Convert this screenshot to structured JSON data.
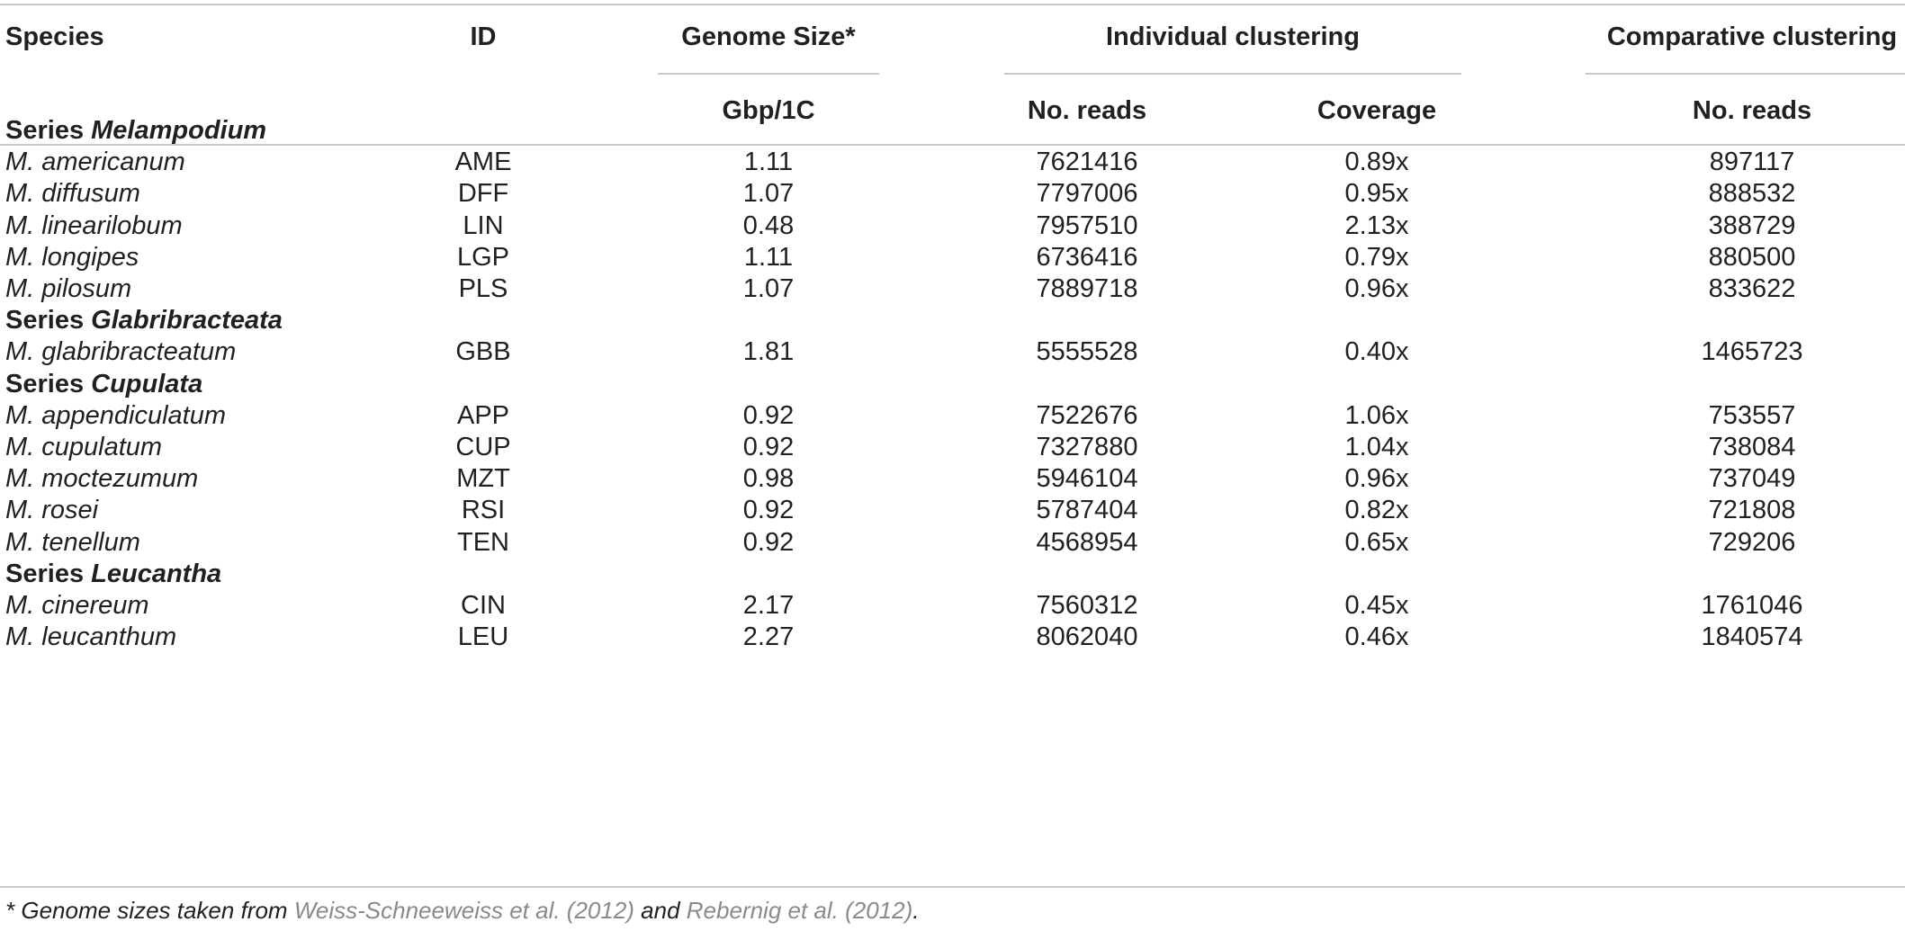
{
  "table": {
    "headers": {
      "species": "Species",
      "id": "ID",
      "genome_size": "Genome Size*",
      "individual": "Individual clustering",
      "comparative": "Comparative clustering",
      "gbp": "Gbp/1C",
      "reads": "No. reads",
      "coverage": "Coverage",
      "comp_reads": "No. reads"
    },
    "groups": [
      {
        "prefix": "Series ",
        "name": "Melampodium",
        "rows": [
          {
            "species": "M. americanum",
            "id": "AME",
            "gbp": "1.11",
            "reads": "7621416",
            "coverage": "0.89x",
            "comp_reads": "897117"
          },
          {
            "species": "M. diffusum",
            "id": "DFF",
            "gbp": "1.07",
            "reads": "7797006",
            "coverage": "0.95x",
            "comp_reads": "888532"
          },
          {
            "species": "M. linearilobum",
            "id": "LIN",
            "gbp": "0.48",
            "reads": "7957510",
            "coverage": "2.13x",
            "comp_reads": "388729"
          },
          {
            "species": "M. longipes",
            "id": "LGP",
            "gbp": "1.11",
            "reads": "6736416",
            "coverage": "0.79x",
            "comp_reads": "880500"
          },
          {
            "species": "M. pilosum",
            "id": "PLS",
            "gbp": "1.07",
            "reads": "7889718",
            "coverage": "0.96x",
            "comp_reads": "833622"
          }
        ]
      },
      {
        "prefix": "Series ",
        "name": "Glabribracteata",
        "rows": [
          {
            "species": "M. glabribracteatum",
            "id": "GBB",
            "gbp": "1.81",
            "reads": "5555528",
            "coverage": "0.40x",
            "comp_reads": "1465723"
          }
        ]
      },
      {
        "prefix": "Series ",
        "name": "Cupulata",
        "rows": [
          {
            "species": "M. appendiculatum",
            "id": "APP",
            "gbp": "0.92",
            "reads": "7522676",
            "coverage": "1.06x",
            "comp_reads": "753557"
          },
          {
            "species": "M. cupulatum",
            "id": "CUP",
            "gbp": "0.92",
            "reads": "7327880",
            "coverage": "1.04x",
            "comp_reads": "738084"
          },
          {
            "species": "M. moctezumum",
            "id": "MZT",
            "gbp": "0.98",
            "reads": "5946104",
            "coverage": "0.96x",
            "comp_reads": "737049"
          },
          {
            "species": "M. rosei",
            "id": "RSI",
            "gbp": "0.92",
            "reads": "5787404",
            "coverage": "0.82x",
            "comp_reads": "721808"
          },
          {
            "species": "M. tenellum",
            "id": "TEN",
            "gbp": "0.92",
            "reads": "4568954",
            "coverage": "0.65x",
            "comp_reads": "729206"
          }
        ]
      },
      {
        "prefix": "Series ",
        "name": "Leucantha",
        "rows": [
          {
            "species": "M. cinereum",
            "id": "CIN",
            "gbp": "2.17",
            "reads": "7560312",
            "coverage": "0.45x",
            "comp_reads": "1761046"
          },
          {
            "species": "M. leucanthum",
            "id": "LEU",
            "gbp": "2.27",
            "reads": "8062040",
            "coverage": "0.46x",
            "comp_reads": "1840574"
          }
        ]
      }
    ]
  },
  "footnote": {
    "lead": "* Genome sizes taken from ",
    "ref1": "Weiss-Schneeweiss et al. (2012)",
    "mid": " and ",
    "ref2": "Rebernig et al. (2012)",
    "tail": "."
  }
}
